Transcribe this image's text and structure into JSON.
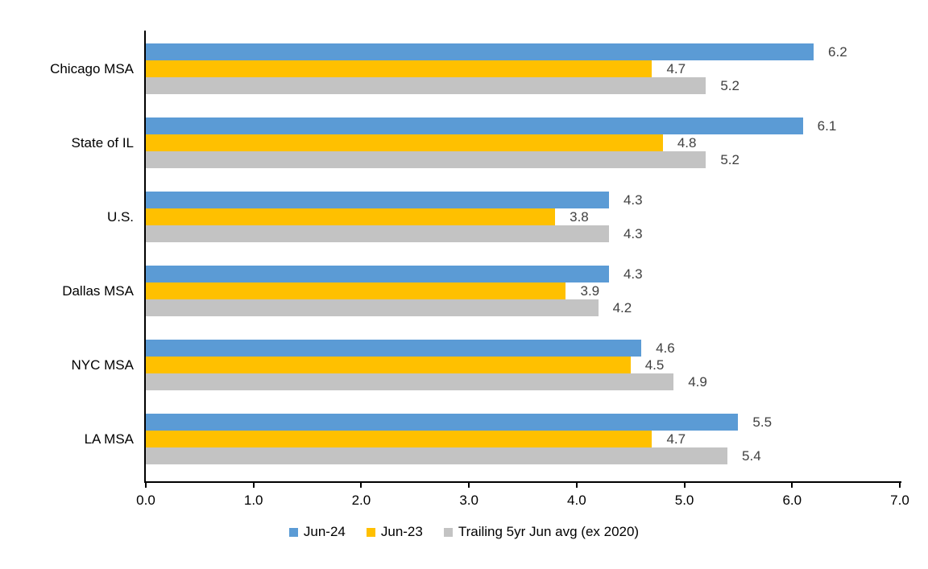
{
  "chart_data": {
    "type": "bar",
    "orientation": "horizontal",
    "title": "",
    "categories": [
      "Chicago MSA",
      "State of IL",
      "U.S.",
      "Dallas MSA",
      "NYC MSA",
      "LA MSA"
    ],
    "series": [
      {
        "name": "Jun-24",
        "color": "#5B9BD5",
        "values": [
          6.2,
          6.1,
          4.3,
          4.3,
          4.6,
          5.5
        ]
      },
      {
        "name": "Jun-23",
        "color": "#FFC000",
        "values": [
          4.7,
          4.8,
          3.8,
          3.9,
          4.5,
          4.7
        ]
      },
      {
        "name": "Trailing 5yr Jun avg (ex 2020)",
        "color": "#C3C3C3",
        "values": [
          5.2,
          5.2,
          4.3,
          4.2,
          4.9,
          5.4
        ]
      }
    ],
    "xlim": [
      0.0,
      7.0
    ],
    "x_tick_step": 1.0,
    "x_tick_labels": [
      "0.0",
      "1.0",
      "2.0",
      "3.0",
      "4.0",
      "5.0",
      "6.0",
      "7.0"
    ],
    "grid": false,
    "legend_position": "bottom",
    "data_labels": true,
    "data_label_color": "#404040",
    "axis_color": "#000000",
    "text_color": "#000000"
  }
}
